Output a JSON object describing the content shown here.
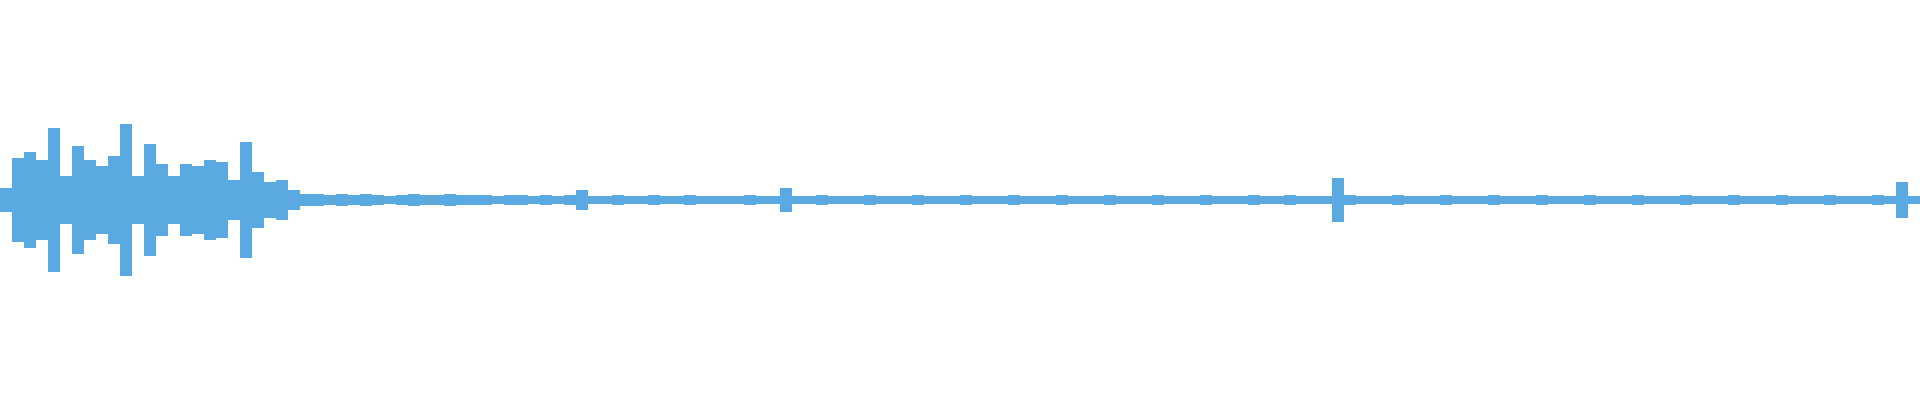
{
  "chart_data": {
    "type": "waveform",
    "color": "#5aa9e0",
    "ylim": [
      -1,
      1
    ],
    "values": [
      0.06,
      0.21,
      0.24,
      0.2,
      0.36,
      0.12,
      0.27,
      0.2,
      0.17,
      0.22,
      0.38,
      0.12,
      0.28,
      0.18,
      0.12,
      0.18,
      0.17,
      0.2,
      0.19,
      0.1,
      0.29,
      0.14,
      0.09,
      0.1,
      0.05,
      0.03,
      0.03,
      0.025,
      0.03,
      0.025,
      0.03,
      0.025,
      0.02,
      0.025,
      0.03,
      0.025,
      0.025,
      0.03,
      0.025,
      0.025,
      0.025,
      0.02,
      0.025,
      0.025,
      0.02,
      0.025,
      0.02,
      0.025,
      0.05,
      0.02,
      0.02,
      0.025,
      0.02,
      0.02,
      0.025,
      0.02,
      0.02,
      0.025,
      0.02,
      0.02,
      0.02,
      0.02,
      0.025,
      0.02,
      0.02,
      0.06,
      0.02,
      0.02,
      0.025,
      0.02,
      0.02,
      0.02,
      0.025,
      0.02,
      0.02,
      0.02,
      0.025,
      0.02,
      0.02,
      0.02,
      0.025,
      0.02,
      0.02,
      0.02,
      0.025,
      0.02,
      0.02,
      0.02,
      0.025,
      0.02,
      0.02,
      0.02,
      0.025,
      0.02,
      0.02,
      0.02,
      0.025,
      0.02,
      0.02,
      0.02,
      0.025,
      0.02,
      0.02,
      0.02,
      0.025,
      0.02,
      0.02,
      0.025,
      0.02,
      0.02,
      0.02,
      0.11,
      0.025,
      0.02,
      0.02,
      0.02,
      0.025,
      0.02,
      0.02,
      0.02,
      0.025,
      0.02,
      0.02,
      0.02,
      0.025,
      0.02,
      0.02,
      0.02,
      0.025,
      0.02,
      0.02,
      0.02,
      0.025,
      0.02,
      0.02,
      0.02,
      0.025,
      0.02,
      0.02,
      0.02,
      0.025,
      0.02,
      0.02,
      0.02,
      0.025,
      0.02,
      0.02,
      0.02,
      0.025,
      0.02,
      0.02,
      0.02,
      0.025,
      0.02,
      0.02,
      0.02,
      0.025,
      0.02,
      0.09,
      0.02
    ]
  }
}
